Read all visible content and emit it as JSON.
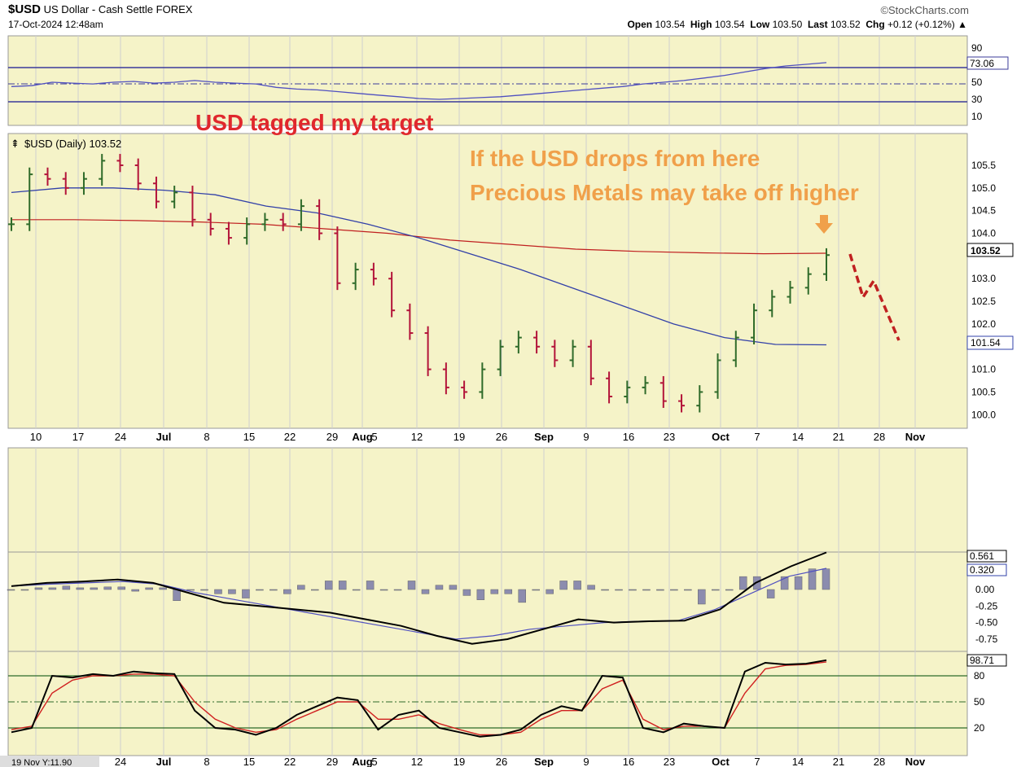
{
  "header": {
    "symbol": "$USD",
    "name": "US Dollar - Cash Settle",
    "exchange": "FOREX",
    "datetime": "17-Oct-2024 12:48am",
    "brand": "©StockCharts.com",
    "open_label": "Open",
    "open": "103.54",
    "high_label": "High",
    "high": "103.54",
    "low_label": "Low",
    "low": "103.50",
    "last_label": "Last",
    "last": "103.52",
    "chg_label": "Chg",
    "chg": "+0.12 (+0.12%)"
  },
  "annotations": {
    "title": "USD tagged my target",
    "line1": "If the USD drops from here",
    "line2": "Precious Metals may take off higher"
  },
  "main_label": "$USD (Daily) 103.52",
  "bottom_status": "19 Nov Y:11.90",
  "colors": {
    "up": "#2f6b2a",
    "down": "#b3143a",
    "ma50": "#3240a8",
    "ma200": "#c02020",
    "panel": "#f5f3c8",
    "arrow": "#f0a04a",
    "projection": "#c02020"
  },
  "chart_data": [
    {
      "type": "line",
      "panel": "rsi",
      "yticks": [
        "90",
        "70",
        "50",
        "30",
        "10"
      ],
      "last_value": "73.06",
      "ylim": [
        0,
        100
      ],
      "values": [
        45,
        46,
        50,
        49,
        48,
        50,
        51,
        49,
        50,
        52,
        50,
        49,
        48,
        44,
        42,
        41,
        39,
        37,
        35,
        33,
        31,
        30,
        31,
        32,
        33,
        35,
        37,
        39,
        41,
        43,
        45,
        48,
        50,
        52,
        55,
        58,
        62,
        66,
        69,
        71,
        73
      ]
    },
    {
      "type": "candlestick",
      "panel": "price",
      "series_name": "$USD (Daily)",
      "ylim": [
        99.7,
        106.2
      ],
      "yticks": [
        "105.5",
        "105.0",
        "104.5",
        "104.0",
        "103.0",
        "102.5",
        "102.0",
        "101.0",
        "100.5",
        "100.0"
      ],
      "last_value": "103.52",
      "ma50_value": "101.54",
      "x_labels": [
        "10",
        "17",
        "24",
        "Jul",
        "8",
        "15",
        "22",
        "29",
        "Aug",
        "5",
        "12",
        "19",
        "26",
        "Sep",
        "9",
        "16",
        "23",
        "Oct",
        "7",
        "14",
        "21",
        "28",
        "Nov"
      ],
      "closes": [
        104.2,
        105.3,
        105.2,
        105.0,
        105.2,
        105.6,
        105.5,
        105.1,
        104.7,
        104.9,
        104.3,
        104.1,
        103.9,
        104.2,
        104.3,
        104.2,
        104.6,
        104.0,
        102.9,
        103.2,
        103.0,
        102.3,
        101.8,
        101.0,
        100.6,
        100.5,
        101.0,
        101.5,
        101.7,
        101.5,
        101.2,
        101.5,
        100.8,
        100.4,
        100.6,
        100.7,
        100.3,
        100.2,
        100.5,
        101.2,
        101.7,
        102.3,
        102.6,
        102.8,
        103.1,
        103.52
      ],
      "ma50": [
        104.9,
        105.0,
        105.0,
        104.95,
        104.85,
        104.6,
        104.45,
        104.2,
        103.9,
        103.55,
        103.2,
        102.8,
        102.4,
        102.0,
        101.7,
        101.55,
        101.54
      ],
      "ma200": [
        104.3,
        104.3,
        104.28,
        104.25,
        104.2,
        104.1,
        104.0,
        103.85,
        103.75,
        103.65,
        103.6,
        103.57,
        103.55,
        103.56
      ]
    },
    {
      "type": "line",
      "panel": "macd",
      "yticks": [
        "0.00",
        "-0.25",
        "-0.50",
        "-0.75"
      ],
      "badges": [
        "0.561",
        "0.320"
      ],
      "macd": [
        0.05,
        0.1,
        0.12,
        0.15,
        0.1,
        -0.05,
        -0.2,
        -0.25,
        -0.3,
        -0.35,
        -0.45,
        -0.55,
        -0.7,
        -0.82,
        -0.75,
        -0.6,
        -0.45,
        -0.5,
        -0.48,
        -0.47,
        -0.3,
        0.1,
        0.35,
        0.56
      ],
      "signal": [
        0.05,
        0.08,
        0.1,
        0.12,
        0.08,
        -0.05,
        -0.15,
        -0.25,
        -0.35,
        -0.45,
        -0.55,
        -0.65,
        -0.75,
        -0.7,
        -0.6,
        -0.55,
        -0.5,
        -0.48,
        -0.47,
        -0.3,
        -0.05,
        0.2,
        0.32
      ]
    },
    {
      "type": "line",
      "panel": "stochastic",
      "yticks": [
        "80",
        "50",
        "20"
      ],
      "last_value": "98.71",
      "k": [
        15,
        20,
        80,
        78,
        82,
        80,
        85,
        83,
        82,
        40,
        20,
        18,
        12,
        20,
        35,
        45,
        55,
        52,
        18,
        35,
        40,
        20,
        15,
        10,
        12,
        18,
        35,
        45,
        40,
        80,
        78,
        20,
        15,
        25,
        22,
        20,
        85,
        95,
        93,
        94,
        98
      ],
      "d": [
        18,
        22,
        60,
        75,
        80,
        80,
        82,
        82,
        80,
        50,
        30,
        20,
        15,
        18,
        30,
        40,
        50,
        50,
        30,
        30,
        35,
        25,
        18,
        12,
        12,
        15,
        30,
        40,
        40,
        65,
        75,
        30,
        18,
        22,
        22,
        20,
        60,
        88,
        92,
        93,
        96
      ]
    }
  ]
}
